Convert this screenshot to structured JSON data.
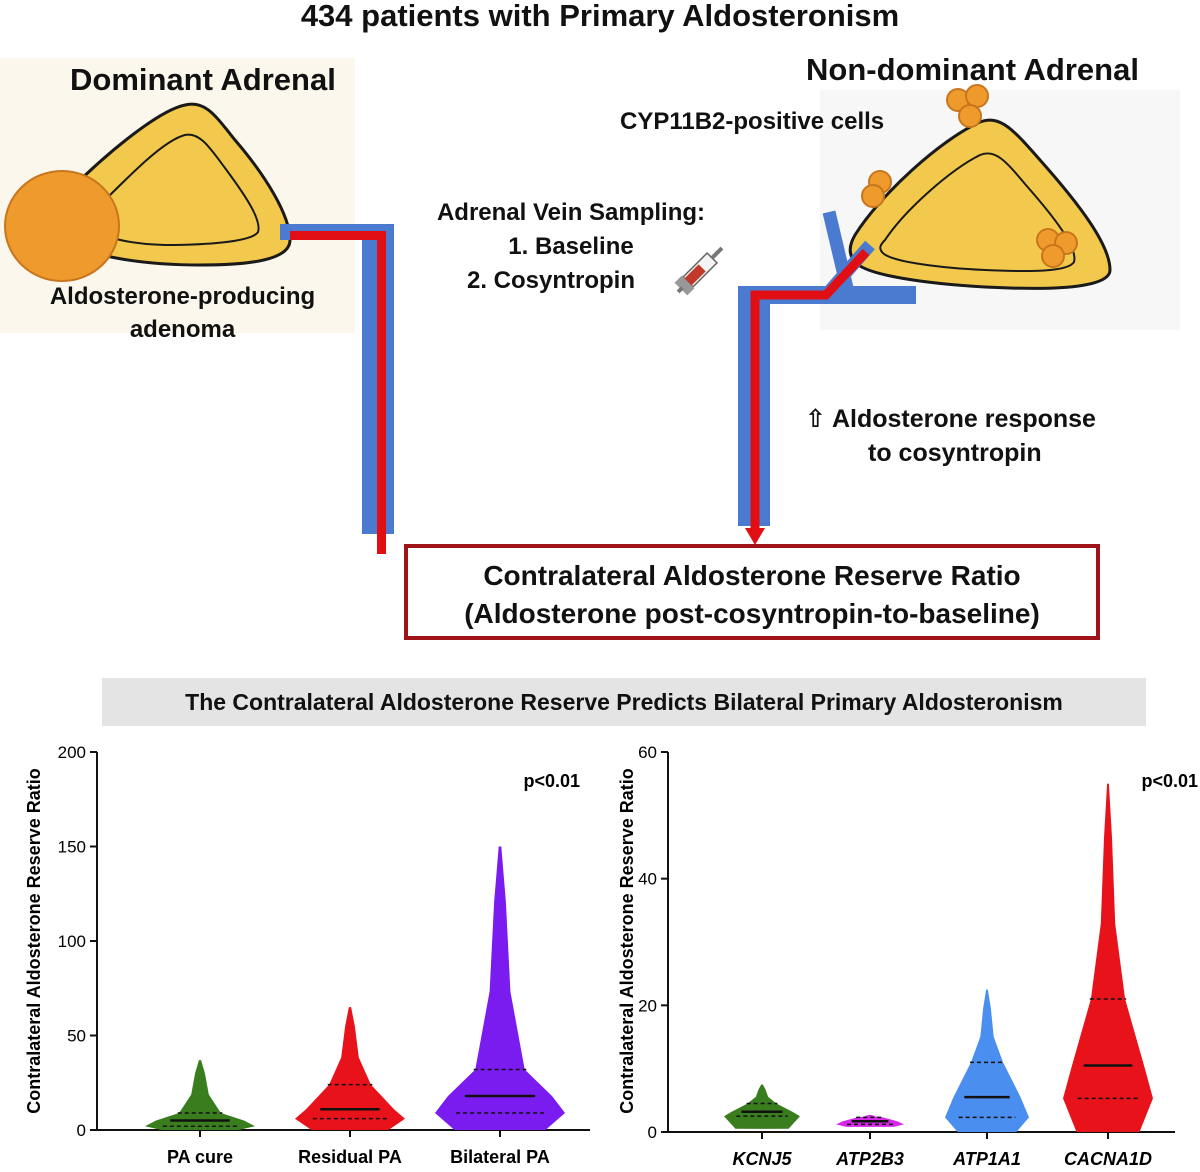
{
  "title": "434 patients with Primary Aldosteronism",
  "dominant": {
    "header": "Dominant Adrenal",
    "adenoma_label_1": "Aldosterone-producing",
    "adenoma_label_2": "adenoma"
  },
  "nondominant": {
    "header": "Non-dominant Adrenal",
    "cells_label": "CYP11B2-positive cells"
  },
  "avs": {
    "heading": "Adrenal Vein Sampling:",
    "step1": "1. Baseline",
    "step2": "2. Cosyntropin"
  },
  "response": {
    "arrow": "⇧",
    "line1": "Aldosterone response",
    "line2": "to cosyntropin"
  },
  "ratio_box": {
    "line1": "Contralateral Aldosterone Reserve Ratio",
    "line2": "(Aldosterone post-cosyntropin-to-baseline)"
  },
  "banner": "The Contralateral Aldosterone Reserve Predicts Bilateral Primary Aldosteronism",
  "colors": {
    "gland": "#f2c94c",
    "adenoma": "#ee9a2c",
    "vein_blue": "#4a7bd0",
    "vein_red": "#e10e14",
    "box_border": "#a01419"
  },
  "chart_data": [
    {
      "type": "violin",
      "ylabel": "Contralateral Aldosterone Reserve Ratio",
      "ylim": [
        0,
        200
      ],
      "yticks": [
        "0",
        "50",
        "100",
        "150",
        "200"
      ],
      "pvalue": "p<0.01",
      "categories": [
        "PA cure",
        "Residual PA",
        "Bilateral PA"
      ],
      "colors": [
        "#3a7d1e",
        "#e8121b",
        "#7a1bf0"
      ],
      "series": [
        {
          "min": 0,
          "q1": 2,
          "median": 5,
          "q3": 9,
          "max": 37
        },
        {
          "min": 0,
          "q1": 6,
          "median": 11,
          "q3": 24,
          "max": 65
        },
        {
          "min": 0,
          "q1": 9,
          "median": 18,
          "q3": 32,
          "max": 150
        }
      ]
    },
    {
      "type": "violin",
      "ylabel": "Contralateral Aldosterone Reserve Ratio",
      "ylim": [
        0,
        60
      ],
      "yticks": [
        "0",
        "20",
        "40",
        "60"
      ],
      "pvalue": "p<0.01",
      "categories": [
        "KCNJ5",
        "ATP2B3",
        "ATP1A1",
        "CACNA1D"
      ],
      "colors": [
        "#3a7d1e",
        "#d528e8",
        "#4a8ff0",
        "#e8121b"
      ],
      "series": [
        {
          "min": 0.5,
          "q1": 2.5,
          "median": 3.2,
          "q3": 4.5,
          "max": 7.5
        },
        {
          "min": 0.8,
          "q1": 1.2,
          "median": 1.7,
          "q3": 2.3,
          "max": 2.7
        },
        {
          "min": 0,
          "q1": 2.3,
          "median": 5.5,
          "q3": 11,
          "max": 22.5
        },
        {
          "min": 0,
          "q1": 5.3,
          "median": 10.5,
          "q3": 21,
          "max": 55
        }
      ]
    }
  ]
}
